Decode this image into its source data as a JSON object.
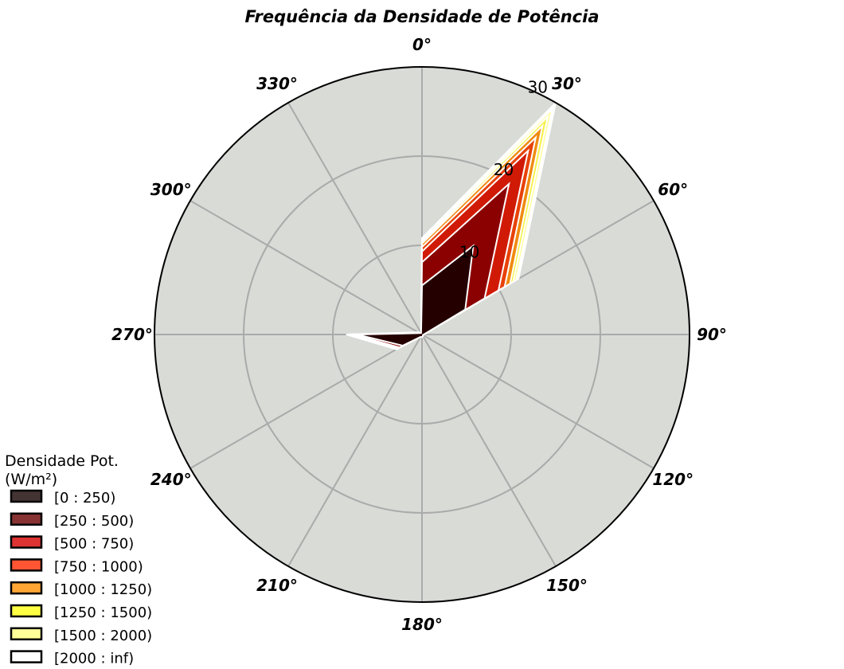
{
  "chart_data": {
    "type": "radar",
    "title": "Frequência da Densidade de Potência",
    "directions": [
      0,
      30,
      60,
      90,
      120,
      150,
      180,
      210,
      240,
      270,
      300,
      330
    ],
    "direction_labels": [
      "0°",
      "30°",
      "60°",
      "90°",
      "120°",
      "150°",
      "180°",
      "210°",
      "240°",
      "270°",
      "300°",
      "330°"
    ],
    "rmax": 30,
    "radial_ticks": [
      10,
      20,
      30
    ],
    "radial_tick_labels": [
      "10",
      "20",
      "30"
    ],
    "grid": true,
    "background_color": "#d8dbd6",
    "legend_title": "Densidade Pot.\n(W/m²)",
    "legend_position": "lower-left",
    "series": [
      {
        "name": "[2000 : inf)",
        "color": "#ffffff",
        "legend_color": "#ffffff",
        "values": [
          10.8,
          30.0,
          12.5,
          0.2,
          0.1,
          0.2,
          0.3,
          0.3,
          3.3,
          8.5,
          0.5,
          0.2
        ]
      },
      {
        "name": "[1500 : 2000)",
        "color": "#ffff99",
        "legend_color": "#ffff99",
        "values": [
          10.6,
          29.2,
          12.2,
          0.2,
          0.1,
          0.2,
          0.3,
          0.3,
          3.3,
          8.4,
          0.5,
          0.2
        ]
      },
      {
        "name": "[1250 : 1500)",
        "color": "#f7f04a",
        "legend_color": "#ffff44",
        "values": [
          10.4,
          28.2,
          11.8,
          0.2,
          0.1,
          0.2,
          0.3,
          0.3,
          3.2,
          8.3,
          0.5,
          0.2
        ]
      },
      {
        "name": "[1000 : 1250)",
        "color": "#f08a10",
        "legend_color": "#ffa533",
        "values": [
          10.2,
          27.0,
          11.4,
          0.2,
          0.1,
          0.2,
          0.3,
          0.3,
          3.2,
          8.2,
          0.4,
          0.2
        ]
      },
      {
        "name": "[750 : 1000)",
        "color": "#e8420a",
        "legend_color": "#ff5533",
        "values": [
          9.8,
          25.5,
          10.7,
          0.2,
          0.1,
          0.2,
          0.3,
          0.3,
          3.1,
          8.1,
          0.4,
          0.2
        ]
      },
      {
        "name": "[500 : 750)",
        "color": "#d01a05",
        "legend_color": "#dd3333",
        "values": [
          9.3,
          23.8,
          9.9,
          0.2,
          0.1,
          0.2,
          0.3,
          0.3,
          3.0,
          8.0,
          0.4,
          0.2
        ]
      },
      {
        "name": "[250 : 500)",
        "color": "#8b0000",
        "legend_color": "#883333",
        "values": [
          8.1,
          19.5,
          8.1,
          0.2,
          0.1,
          0.2,
          0.3,
          0.3,
          2.9,
          7.8,
          0.4,
          0.2
        ]
      },
      {
        "name": "[0 : 250)",
        "color": "#250000",
        "legend_color": "#443333",
        "values": [
          5.5,
          11.5,
          5.6,
          0.2,
          0.1,
          0.2,
          0.3,
          0.3,
          2.5,
          7.3,
          0.3,
          0.2
        ]
      }
    ],
    "legend_order": [
      "[0 : 250)",
      "[250 : 500)",
      "[500 : 750)",
      "[750 : 1000)",
      "[1000 : 1250)",
      "[1250 : 1500)",
      "[1500 : 2000)",
      "[2000 : inf)"
    ]
  }
}
